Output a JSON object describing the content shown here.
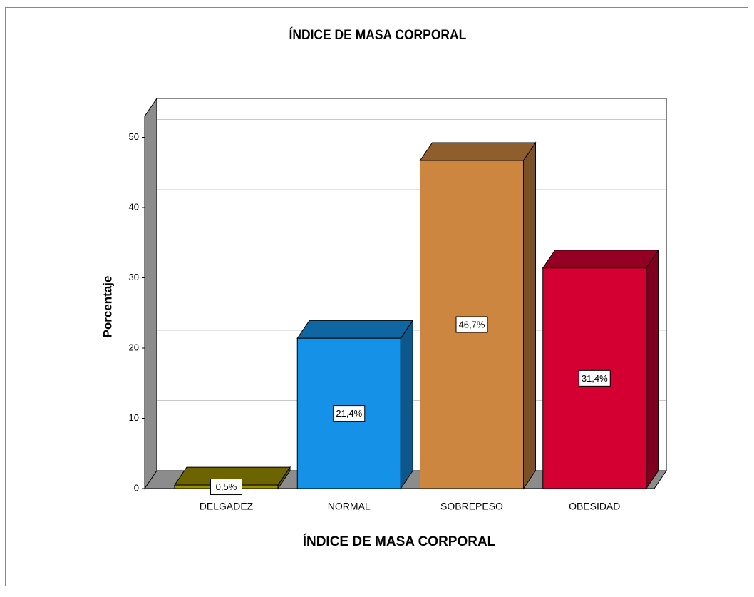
{
  "chart_data": {
    "type": "bar3d",
    "title": "ÍNDICE DE MASA CORPORAL",
    "xlabel": "ÍNDICE DE MASA CORPORAL",
    "ylabel": "Porcentaje",
    "categories": [
      "DELGADEZ",
      "NORMAL",
      "SOBREPESO",
      "OBESIDAD"
    ],
    "values": [
      0.5,
      21.4,
      46.7,
      31.4
    ],
    "value_labels": [
      "0,5%",
      "21,4%",
      "46,7%",
      "31,4%"
    ],
    "colors": [
      "#9a8f00",
      "#1591e8",
      "#cc8640",
      "#d40032"
    ],
    "ylim": [
      0,
      53
    ],
    "yticks": [
      0,
      10,
      20,
      30,
      40,
      50
    ],
    "grid": true
  }
}
